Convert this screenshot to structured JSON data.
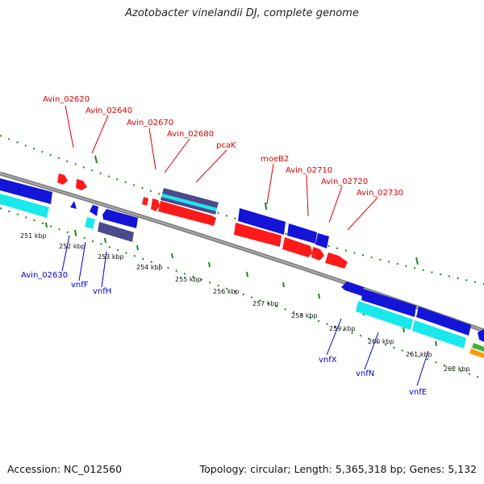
{
  "title": "Azotobacter vinelandii DJ, complete genome",
  "footer": {
    "accession": "Accession: NC_012560",
    "topology": "Topology: circular; Length: 5,365,318 bp; Genes: 5,132"
  },
  "colors": {
    "backbone": "#808080",
    "tick": "#1a8a1a",
    "red_feature": "#ff1a1a",
    "blue_feature": "#1414d8",
    "cyan_feature": "#19e8ec",
    "navy_feature": "#4a4a8c",
    "green_feature": "#3cb43c",
    "orange_feature": "#ff9900",
    "red_label": "#dd0000",
    "blue_label": "#0000cc"
  },
  "kbp_labels": [
    "251 kbp",
    "252 kbp",
    "253 kbp",
    "254 kbp",
    "255 kbp",
    "256 kbp",
    "257 kbp",
    "258 kbp",
    "259 kbp",
    "260 kbp",
    "261 kbp",
    "262 kbp"
  ],
  "red_gene_labels": [
    "Avin_02620",
    "Avin_02640",
    "Avin_02670",
    "Avin_02680",
    "pcaK",
    "moeB2",
    "Avin_02710",
    "Avin_02720",
    "Avin_02730"
  ],
  "blue_gene_labels": [
    "Avin_02630",
    "vnfF",
    "vnfH",
    "vnfX",
    "vnfN",
    "vnfE"
  ]
}
